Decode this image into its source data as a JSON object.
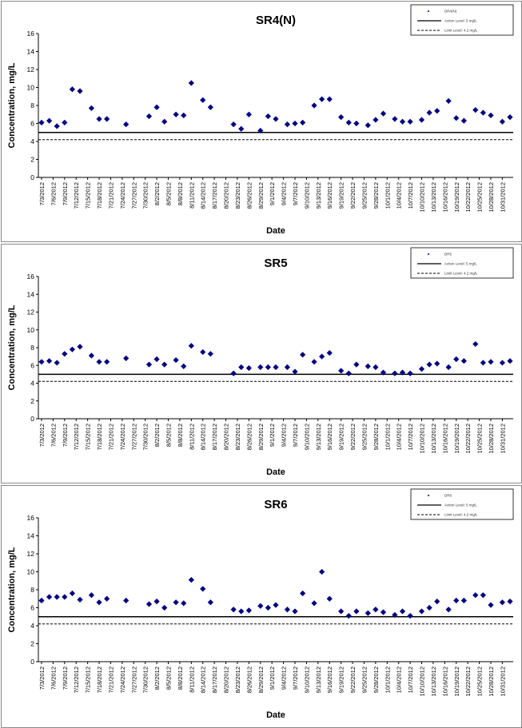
{
  "colors": {
    "marker": "#000080",
    "axis": "#000000",
    "action_line": "#000000",
    "limit_line": "#000000"
  },
  "chart_data": [
    {
      "type": "scatter",
      "title": "SR4(N)",
      "xlabel": "Date",
      "ylabel": "Concentration, mg/L",
      "ylim": [
        0,
        16
      ],
      "yticks": [
        0,
        2,
        4,
        6,
        8,
        10,
        12,
        14,
        16
      ],
      "x_tick_labels": [
        "7/3/2012",
        "7/6/2012",
        "7/9/2012",
        "7/12/2012",
        "7/15/2012",
        "7/18/2012",
        "7/21/2012",
        "7/24/2012",
        "7/27/2012",
        "7/30/2012",
        "8/2/2012",
        "8/5/2012",
        "8/8/2012",
        "8/11/2012",
        "8/14/2012",
        "8/17/2012",
        "8/20/2012",
        "8/23/2012",
        "8/26/2012",
        "8/29/2012",
        "9/1/2012",
        "9/4/2012",
        "9/7/2012",
        "9/10/2012",
        "9/13/2012",
        "9/16/2012",
        "9/19/2012",
        "9/22/2012",
        "9/25/2012",
        "9/28/2012",
        "10/1/2012",
        "10/4/2012",
        "10/7/2012",
        "10/10/2012",
        "10/13/2012",
        "10/16/2012",
        "10/19/2012",
        "10/22/2012",
        "10/25/2012",
        "10/28/2012",
        "10/31/2012"
      ],
      "legend": [
        "DR4(N)",
        "Action Level: 5 mg/L",
        "Limit Level: 4.2 mg/L"
      ],
      "action_level": 5,
      "limit_level": 4.2,
      "series": [
        {
          "name": "DR4(N)",
          "points": [
            [
              "7/3/2012",
              6.1
            ],
            [
              "7/5/2012",
              6.3
            ],
            [
              "7/7/2012",
              5.7
            ],
            [
              "7/9/2012",
              6.1
            ],
            [
              "7/11/2012",
              9.8
            ],
            [
              "7/13/2012",
              9.6
            ],
            [
              "7/16/2012",
              7.7
            ],
            [
              "7/18/2012",
              6.5
            ],
            [
              "7/20/2012",
              6.5
            ],
            [
              "7/25/2012",
              5.9
            ],
            [
              "7/31/2012",
              6.8
            ],
            [
              "8/2/2012",
              7.8
            ],
            [
              "8/4/2012",
              6.2
            ],
            [
              "8/7/2012",
              7.0
            ],
            [
              "8/9/2012",
              6.9
            ],
            [
              "8/11/2012",
              10.5
            ],
            [
              "8/14/2012",
              8.6
            ],
            [
              "8/16/2012",
              7.8
            ],
            [
              "8/22/2012",
              5.9
            ],
            [
              "8/24/2012",
              5.4
            ],
            [
              "8/26/2012",
              7.0
            ],
            [
              "8/29/2012",
              5.2
            ],
            [
              "8/31/2012",
              6.8
            ],
            [
              "9/2/2012",
              6.5
            ],
            [
              "9/5/2012",
              5.9
            ],
            [
              "9/7/2012",
              6.0
            ],
            [
              "9/9/2012",
              6.1
            ],
            [
              "9/12/2012",
              8.0
            ],
            [
              "9/14/2012",
              8.7
            ],
            [
              "9/16/2012",
              8.7
            ],
            [
              "9/19/2012",
              6.7
            ],
            [
              "9/21/2012",
              6.1
            ],
            [
              "9/23/2012",
              6.0
            ],
            [
              "9/26/2012",
              5.8
            ],
            [
              "9/28/2012",
              6.4
            ],
            [
              "9/30/2012",
              7.1
            ],
            [
              "10/3/2012",
              6.5
            ],
            [
              "10/5/2012",
              6.2
            ],
            [
              "10/7/2012",
              6.2
            ],
            [
              "10/10/2012",
              6.4
            ],
            [
              "10/12/2012",
              7.2
            ],
            [
              "10/14/2012",
              7.4
            ],
            [
              "10/17/2012",
              8.5
            ],
            [
              "10/19/2012",
              6.6
            ],
            [
              "10/21/2012",
              6.3
            ],
            [
              "10/24/2012",
              7.5
            ],
            [
              "10/26/2012",
              7.2
            ],
            [
              "10/28/2012",
              6.9
            ],
            [
              "10/31/2012",
              6.2
            ],
            [
              "11/2/2012",
              6.7
            ]
          ]
        }
      ]
    },
    {
      "type": "scatter",
      "title": "SR5",
      "xlabel": "Date",
      "ylabel": "Concentration, mg/L",
      "ylim": [
        0,
        16
      ],
      "yticks": [
        0,
        2,
        4,
        6,
        8,
        10,
        12,
        14,
        16
      ],
      "x_tick_labels": [
        "7/3/2012",
        "7/6/2012",
        "7/9/2012",
        "7/12/2012",
        "7/15/2012",
        "7/18/2012",
        "7/21/2012",
        "7/24/2012",
        "7/27/2012",
        "7/30/2012",
        "8/2/2012",
        "8/5/2012",
        "8/8/2012",
        "8/11/2012",
        "8/14/2012",
        "8/17/2012",
        "8/20/2012",
        "8/23/2012",
        "8/26/2012",
        "8/29/2012",
        "9/1/2012",
        "9/4/2012",
        "9/7/2012",
        "9/10/2012",
        "9/13/2012",
        "9/16/2012",
        "9/19/2012",
        "9/22/2012",
        "9/25/2012",
        "9/28/2012",
        "10/1/2012",
        "10/4/2012",
        "10/7/2012",
        "10/10/2012",
        "10/13/2012",
        "10/16/2012",
        "10/19/2012",
        "10/22/2012",
        "10/25/2012",
        "10/28/2012",
        "10/31/2012"
      ],
      "legend": [
        "DR5",
        "Action Level: 5 mg/L",
        "Limit Level: 4.2 mg/L"
      ],
      "action_level": 5,
      "limit_level": 4.2,
      "series": [
        {
          "name": "DR5",
          "points": [
            [
              "7/3/2012",
              6.4
            ],
            [
              "7/5/2012",
              6.5
            ],
            [
              "7/7/2012",
              6.3
            ],
            [
              "7/9/2012",
              7.3
            ],
            [
              "7/11/2012",
              7.8
            ],
            [
              "7/13/2012",
              8.1
            ],
            [
              "7/16/2012",
              7.1
            ],
            [
              "7/18/2012",
              6.4
            ],
            [
              "7/20/2012",
              6.4
            ],
            [
              "7/25/2012",
              6.8
            ],
            [
              "7/31/2012",
              6.1
            ],
            [
              "8/2/2012",
              6.7
            ],
            [
              "8/4/2012",
              6.1
            ],
            [
              "8/7/2012",
              6.6
            ],
            [
              "8/9/2012",
              5.9
            ],
            [
              "8/11/2012",
              8.2
            ],
            [
              "8/14/2012",
              7.5
            ],
            [
              "8/16/2012",
              7.3
            ],
            [
              "8/22/2012",
              5.1
            ],
            [
              "8/24/2012",
              5.8
            ],
            [
              "8/26/2012",
              5.7
            ],
            [
              "8/29/2012",
              5.8
            ],
            [
              "8/31/2012",
              5.8
            ],
            [
              "9/2/2012",
              5.8
            ],
            [
              "9/5/2012",
              5.8
            ],
            [
              "9/7/2012",
              5.3
            ],
            [
              "9/9/2012",
              7.2
            ],
            [
              "9/12/2012",
              6.4
            ],
            [
              "9/14/2012",
              7.0
            ],
            [
              "9/16/2012",
              7.4
            ],
            [
              "9/19/2012",
              5.4
            ],
            [
              "9/21/2012",
              5.1
            ],
            [
              "9/23/2012",
              6.1
            ],
            [
              "9/26/2012",
              5.9
            ],
            [
              "9/28/2012",
              5.8
            ],
            [
              "9/30/2012",
              5.2
            ],
            [
              "10/3/2012",
              5.1
            ],
            [
              "10/5/2012",
              5.2
            ],
            [
              "10/7/2012",
              5.1
            ],
            [
              "10/10/2012",
              5.6
            ],
            [
              "10/12/2012",
              6.1
            ],
            [
              "10/14/2012",
              6.2
            ],
            [
              "10/17/2012",
              5.8
            ],
            [
              "10/19/2012",
              6.7
            ],
            [
              "10/21/2012",
              6.5
            ],
            [
              "10/24/2012",
              8.4
            ],
            [
              "10/26/2012",
              6.3
            ],
            [
              "10/28/2012",
              6.4
            ],
            [
              "10/31/2012",
              6.3
            ],
            [
              "11/2/2012",
              6.5
            ]
          ]
        }
      ]
    },
    {
      "type": "scatter",
      "title": "SR6",
      "xlabel": "Date",
      "ylabel": "Concentration, mg/L",
      "ylim": [
        0,
        16
      ],
      "yticks": [
        0,
        2,
        4,
        6,
        8,
        10,
        12,
        14,
        16
      ],
      "x_tick_labels": [
        "7/3/2012",
        "7/6/2012",
        "7/9/2012",
        "7/12/2012",
        "7/15/2012",
        "7/18/2012",
        "7/21/2012",
        "7/24/2012",
        "7/27/2012",
        "7/30/2012",
        "8/2/2012",
        "8/5/2012",
        "8/8/2012",
        "8/11/2012",
        "8/14/2012",
        "8/17/2012",
        "8/20/2012",
        "8/23/2012",
        "8/26/2012",
        "8/29/2012",
        "9/1/2012",
        "9/4/2012",
        "9/7/2012",
        "9/10/2012",
        "9/13/2012",
        "9/16/2012",
        "9/19/2012",
        "9/22/2012",
        "9/25/2012",
        "9/28/2012",
        "10/1/2012",
        "10/4/2012",
        "10/7/2012",
        "10/10/2012",
        "10/13/2012",
        "10/16/2012",
        "10/19/2012",
        "10/22/2012",
        "10/25/2012",
        "10/28/2012",
        "10/31/2012"
      ],
      "legend": [
        "DR6",
        "Action Level: 5 mg/L",
        "Limit Level: 4.2 mg/L"
      ],
      "action_level": 5,
      "limit_level": 4.2,
      "series": [
        {
          "name": "DR6",
          "points": [
            [
              "7/3/2012",
              6.8
            ],
            [
              "7/5/2012",
              7.2
            ],
            [
              "7/7/2012",
              7.2
            ],
            [
              "7/9/2012",
              7.2
            ],
            [
              "7/11/2012",
              7.6
            ],
            [
              "7/13/2012",
              6.9
            ],
            [
              "7/16/2012",
              7.4
            ],
            [
              "7/18/2012",
              6.6
            ],
            [
              "7/20/2012",
              7.0
            ],
            [
              "7/25/2012",
              6.8
            ],
            [
              "7/31/2012",
              6.4
            ],
            [
              "8/2/2012",
              6.7
            ],
            [
              "8/4/2012",
              6.0
            ],
            [
              "8/7/2012",
              6.6
            ],
            [
              "8/9/2012",
              6.5
            ],
            [
              "8/11/2012",
              9.1
            ],
            [
              "8/14/2012",
              8.1
            ],
            [
              "8/16/2012",
              6.6
            ],
            [
              "8/22/2012",
              5.8
            ],
            [
              "8/24/2012",
              5.6
            ],
            [
              "8/26/2012",
              5.7
            ],
            [
              "8/29/2012",
              6.2
            ],
            [
              "8/31/2012",
              6.0
            ],
            [
              "9/2/2012",
              6.3
            ],
            [
              "9/5/2012",
              5.8
            ],
            [
              "9/7/2012",
              5.6
            ],
            [
              "9/9/2012",
              7.6
            ],
            [
              "9/12/2012",
              6.5
            ],
            [
              "9/14/2012",
              10.0
            ],
            [
              "9/16/2012",
              7.0
            ],
            [
              "9/19/2012",
              5.6
            ],
            [
              "9/21/2012",
              5.1
            ],
            [
              "9/23/2012",
              5.6
            ],
            [
              "9/26/2012",
              5.4
            ],
            [
              "9/28/2012",
              5.8
            ],
            [
              "9/30/2012",
              5.5
            ],
            [
              "10/3/2012",
              5.2
            ],
            [
              "10/5/2012",
              5.6
            ],
            [
              "10/7/2012",
              5.1
            ],
            [
              "10/10/2012",
              5.6
            ],
            [
              "10/12/2012",
              6.0
            ],
            [
              "10/14/2012",
              6.7
            ],
            [
              "10/17/2012",
              5.8
            ],
            [
              "10/19/2012",
              6.8
            ],
            [
              "10/21/2012",
              6.8
            ],
            [
              "10/24/2012",
              7.4
            ],
            [
              "10/26/2012",
              7.4
            ],
            [
              "10/28/2012",
              6.3
            ],
            [
              "10/31/2012",
              6.6
            ],
            [
              "11/2/2012",
              6.7
            ]
          ]
        }
      ]
    }
  ]
}
